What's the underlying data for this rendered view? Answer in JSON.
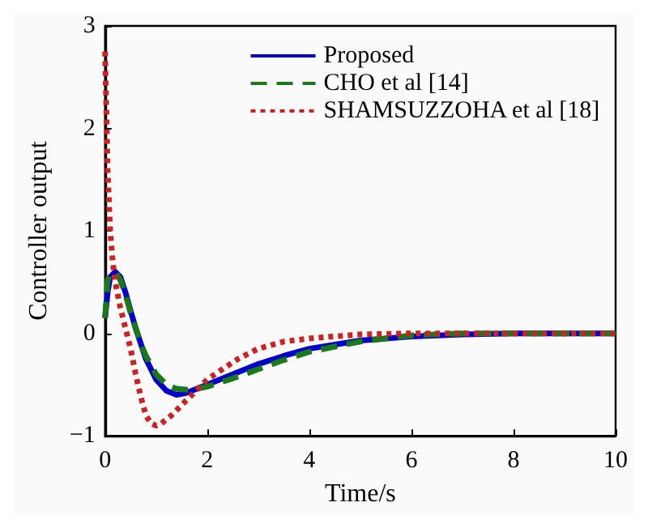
{
  "chart_data": {
    "type": "line",
    "xlabel": "Time/s",
    "ylabel": "Controller output",
    "xlim": [
      0,
      10
    ],
    "ylim": [
      -1,
      3
    ],
    "xticks": [
      0,
      2,
      4,
      6,
      8,
      10
    ],
    "yticks": [
      -1,
      0,
      1,
      2,
      3
    ],
    "grid": false,
    "legend": "top right",
    "series": [
      {
        "name": "Proposed",
        "color": "#0000cc",
        "line_style": "solid",
        "x": [
          0,
          0.05,
          0.1,
          0.2,
          0.3,
          0.4,
          0.5,
          0.6,
          0.7,
          0.8,
          1.0,
          1.2,
          1.4,
          1.6,
          1.8,
          2,
          2.5,
          3,
          3.5,
          4,
          5,
          6,
          7,
          8,
          10
        ],
        "values": [
          0.15,
          0.4,
          0.55,
          0.6,
          0.55,
          0.4,
          0.22,
          0.05,
          -0.1,
          -0.25,
          -0.45,
          -0.56,
          -0.6,
          -0.58,
          -0.54,
          -0.5,
          -0.4,
          -0.3,
          -0.22,
          -0.15,
          -0.07,
          -0.03,
          -0.01,
          0,
          0
        ]
      },
      {
        "name": "CHO et al [14]",
        "color": "#1a7a1a",
        "line_style": "dashed",
        "x": [
          0,
          0.05,
          0.1,
          0.2,
          0.3,
          0.4,
          0.5,
          0.6,
          0.7,
          0.8,
          1.0,
          1.2,
          1.4,
          1.6,
          1.8,
          2,
          2.5,
          3,
          3.5,
          4,
          5,
          6,
          7,
          8,
          10
        ],
        "values": [
          0.15,
          0.52,
          0.57,
          0.6,
          0.52,
          0.38,
          0.2,
          0.05,
          -0.1,
          -0.22,
          -0.4,
          -0.5,
          -0.54,
          -0.55,
          -0.54,
          -0.52,
          -0.44,
          -0.35,
          -0.26,
          -0.18,
          -0.08,
          -0.02,
          0,
          0,
          0
        ]
      },
      {
        "name": "SHAMSUZZOHA et al [18]",
        "color": "#cc2222",
        "line_style": "dotted",
        "x": [
          0,
          0.05,
          0.1,
          0.15,
          0.2,
          0.3,
          0.4,
          0.5,
          0.6,
          0.7,
          0.8,
          0.9,
          1.0,
          1.1,
          1.3,
          1.5,
          1.8,
          2,
          2.3,
          2.6,
          3,
          3.5,
          4,
          5,
          6,
          8,
          10
        ],
        "values": [
          2.75,
          1.6,
          1.0,
          0.7,
          0.5,
          0.25,
          0.05,
          -0.15,
          -0.4,
          -0.62,
          -0.8,
          -0.88,
          -0.9,
          -0.88,
          -0.8,
          -0.7,
          -0.55,
          -0.45,
          -0.35,
          -0.25,
          -0.15,
          -0.08,
          -0.05,
          -0.01,
          0,
          0,
          0
        ]
      }
    ]
  }
}
